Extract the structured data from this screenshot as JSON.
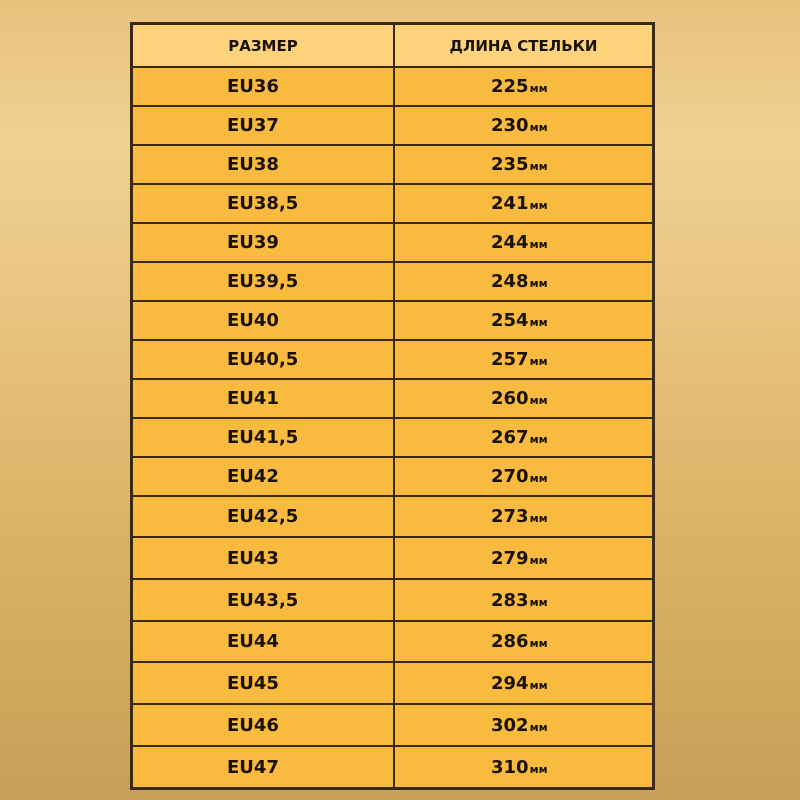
{
  "table": {
    "headers": [
      "РАЗМЕР",
      "ДЛИНА СТЕЛЬКИ"
    ],
    "unit": "мм",
    "rows": [
      {
        "size": "EU36",
        "length": "225"
      },
      {
        "size": "EU37",
        "length": "230"
      },
      {
        "size": "EU38",
        "length": "235"
      },
      {
        "size": "EU38,5",
        "length": "241"
      },
      {
        "size": "EU39",
        "length": "244"
      },
      {
        "size": "EU39,5",
        "length": "248"
      },
      {
        "size": "EU40",
        "length": "254"
      },
      {
        "size": "EU40,5",
        "length": "257"
      },
      {
        "size": "EU41",
        "length": "260"
      },
      {
        "size": "EU41,5",
        "length": "267"
      },
      {
        "size": "EU42",
        "length": "270"
      },
      {
        "size": "EU42,5",
        "length": "273"
      },
      {
        "size": "EU43",
        "length": "279"
      },
      {
        "size": "EU43,5",
        "length": "283"
      },
      {
        "size": "EU44",
        "length": "286"
      },
      {
        "size": "EU45",
        "length": "294"
      },
      {
        "size": "EU46",
        "length": "302"
      },
      {
        "size": "EU47",
        "length": "310"
      }
    ]
  },
  "colors": {
    "header_bg": "#fcd27a",
    "row_bg": "#f9bb3f",
    "border": "#3a2a14"
  }
}
